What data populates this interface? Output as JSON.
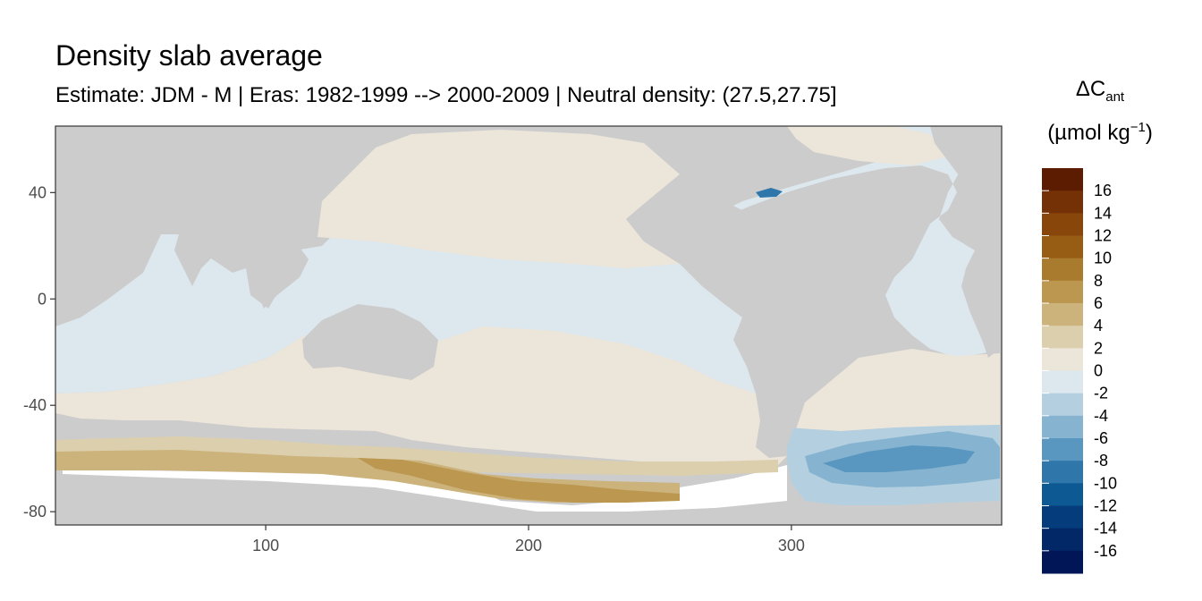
{
  "title": "Density slab average",
  "subtitle": "Estimate: JDM - M | Eras: 1982-1999 --> 2000-2009 | Neutral density: (27.5,27.75]",
  "x_axis": {
    "range": [
      20,
      380
    ],
    "ticks": [
      100,
      200,
      300
    ],
    "tick_labels": [
      "100",
      "200",
      "300"
    ]
  },
  "y_axis": {
    "range": [
      -85,
      65
    ],
    "ticks": [
      40,
      0,
      -40,
      -80
    ],
    "tick_labels": [
      "40",
      "0",
      "-40",
      "-80"
    ]
  },
  "colors": {
    "land": "#cccccc",
    "no_data": "#ffffff",
    "frame": "#333333"
  },
  "legend": {
    "title_main": "ΔC",
    "title_sub": "ant",
    "units_main": "(µmol kg",
    "units_sup": "−1",
    "units_close": ")",
    "labels": [
      "16",
      "14",
      "12",
      "10",
      "8",
      "6",
      "4",
      "2",
      "0",
      "-2",
      "-4",
      "-6",
      "-8",
      "-10",
      "-12",
      "-14",
      "-16"
    ],
    "bin_colors": [
      "#5c1c02",
      "#743106",
      "#88460a",
      "#985d15",
      "#a97b2e",
      "#bb974f",
      "#ccb27b",
      "#dccfad",
      "#ece5d9",
      "#dde8ee",
      "#b3cfe0",
      "#86b4d0",
      "#5a97c0",
      "#2f77aa",
      "#0d5993",
      "#053d7c",
      "#032868",
      "#011656"
    ]
  }
}
